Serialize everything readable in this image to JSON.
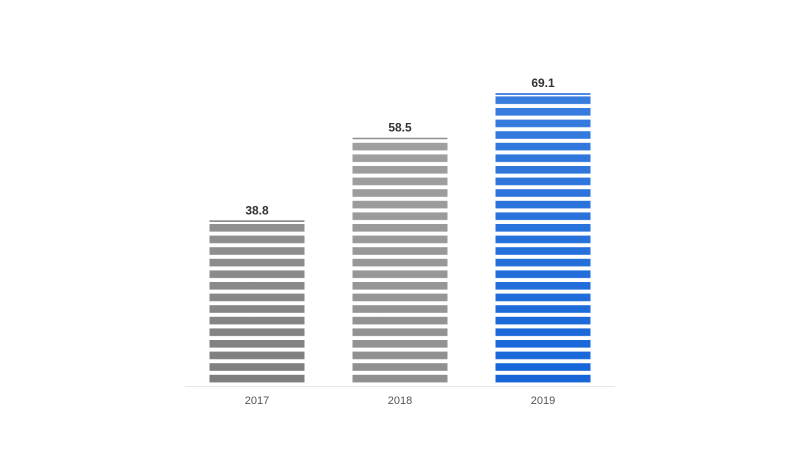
{
  "chart_data": {
    "type": "bar",
    "categories": [
      "2017",
      "2018",
      "2019"
    ],
    "values": [
      38.8,
      58.5,
      69.1
    ],
    "colors": [
      "#7d7d7d",
      "#8f8f8f",
      "#1565d8"
    ]
  }
}
